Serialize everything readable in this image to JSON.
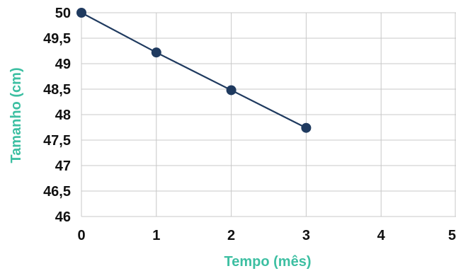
{
  "chart_data": {
    "type": "line",
    "title": "",
    "xlabel": "Tempo (mês)",
    "ylabel": "Tamanho (cm)",
    "xlim": [
      0,
      5
    ],
    "ylim": [
      46,
      50
    ],
    "x_ticks": [
      0,
      1,
      2,
      3,
      4,
      5
    ],
    "y_ticks": [
      46,
      46.5,
      47,
      47.5,
      48,
      48.5,
      49,
      49.5,
      50
    ],
    "x_tick_labels": [
      "0",
      "1",
      "2",
      "3",
      "4",
      "5"
    ],
    "y_tick_labels": [
      "46",
      "46,5",
      "47",
      "47,5",
      "48",
      "48,5",
      "49",
      "49,5",
      "50"
    ],
    "grid": true,
    "series": [
      {
        "x": [
          0,
          1,
          2,
          3
        ],
        "y": [
          50,
          49.22,
          48.48,
          47.74
        ]
      }
    ],
    "colors": {
      "series": "#1f3a5f",
      "axis_title": "#3dbfa2",
      "grid": "#c8c8c8"
    }
  }
}
